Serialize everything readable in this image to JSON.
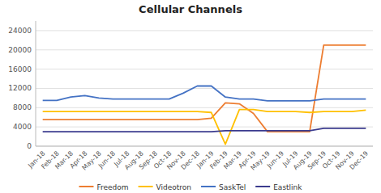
{
  "chart_data": {
    "type": "line",
    "title": "Cellular Channels",
    "categories": [
      "Jan-18",
      "Feb-18",
      "Mar-18",
      "Apr-18",
      "May-18",
      "Jun-18",
      "Jul-18",
      "Aug-18",
      "Sep-18",
      "Oct-18",
      "Nov-18",
      "Dec-18",
      "Jan-19",
      "Feb-19",
      "Mar-19",
      "Apr-19",
      "May-19",
      "Jun-19",
      "Jul-19",
      "Aug-19",
      "Sep-19",
      "Oct-19",
      "Nov-19",
      "Dec-19"
    ],
    "series": [
      {
        "name": "Freedom",
        "color": "#ED7D31",
        "values": [
          5500,
          5500,
          5500,
          5500,
          5500,
          5500,
          5500,
          5500,
          5500,
          5500,
          5500,
          5500,
          5800,
          9000,
          8800,
          6800,
          3000,
          3000,
          3000,
          3000,
          21000,
          21000,
          21000,
          21000
        ]
      },
      {
        "name": "Videotron",
        "color": "#FFC000",
        "values": [
          7200,
          7200,
          7200,
          7200,
          7200,
          7200,
          7200,
          7200,
          7200,
          7200,
          7200,
          7200,
          7000,
          400,
          7600,
          7600,
          7200,
          7200,
          7200,
          7000,
          7200,
          7200,
          7200,
          7500
        ]
      },
      {
        "name": "SaskTel",
        "color": "#4472C4",
        "values": [
          9500,
          9500,
          10200,
          10500,
          10000,
          9800,
          9800,
          9800,
          9800,
          9800,
          11000,
          12500,
          12500,
          10200,
          9800,
          9800,
          9400,
          9400,
          9400,
          9400,
          9800,
          9800,
          9800,
          9800
        ]
      },
      {
        "name": "Eastlink",
        "color": "#3B3B8E",
        "values": [
          3000,
          3000,
          3000,
          3000,
          3000,
          3000,
          3000,
          3000,
          3000,
          3000,
          3000,
          3000,
          3000,
          3200,
          3200,
          3200,
          3200,
          3200,
          3200,
          3200,
          3700,
          3700,
          3700,
          3700
        ]
      }
    ],
    "ylim": [
      0,
      26000
    ],
    "yticks": [
      0,
      4000,
      8000,
      12000,
      16000,
      20000,
      24000
    ],
    "grid": true,
    "legend": "bottom"
  }
}
